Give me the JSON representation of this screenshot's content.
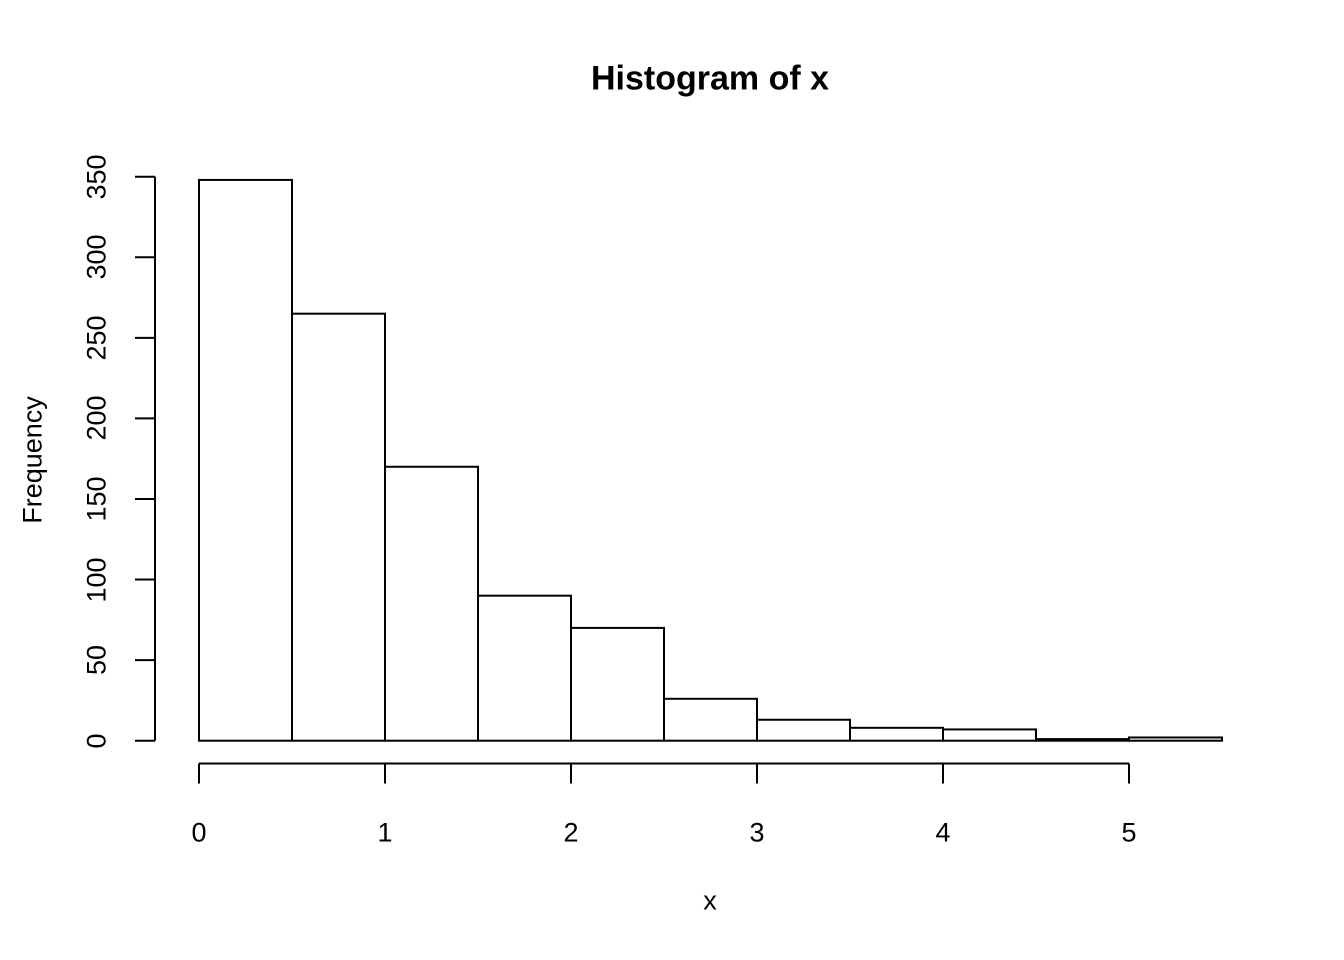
{
  "figure": {
    "background": "#ffffff",
    "foreground": "#000000"
  },
  "chart_data": {
    "type": "bar",
    "subtype": "histogram",
    "title": "Histogram of x",
    "xlabel": "x",
    "ylabel": "Frequency",
    "breaks": [
      0,
      0.5,
      1,
      1.5,
      2,
      2.5,
      3,
      3.5,
      4,
      4.5,
      5,
      5.5
    ],
    "counts": [
      348,
      265,
      170,
      90,
      70,
      26,
      13,
      8,
      7,
      1,
      2
    ],
    "x_tick_labels": [
      "0",
      "1",
      "2",
      "3",
      "4",
      "5"
    ],
    "x_tick_values": [
      0,
      1,
      2,
      3,
      4,
      5
    ],
    "y_tick_labels": [
      "0",
      "50",
      "100",
      "150",
      "200",
      "250",
      "300",
      "350"
    ],
    "y_tick_values": [
      0,
      50,
      100,
      150,
      200,
      250,
      300,
      350
    ],
    "xlim": [
      0,
      5.5
    ],
    "ylim": [
      0,
      350
    ],
    "grid": false,
    "legend": null,
    "bar_fill": "#ffffff",
    "bar_stroke": "#000000",
    "axis_color": "#000000"
  }
}
